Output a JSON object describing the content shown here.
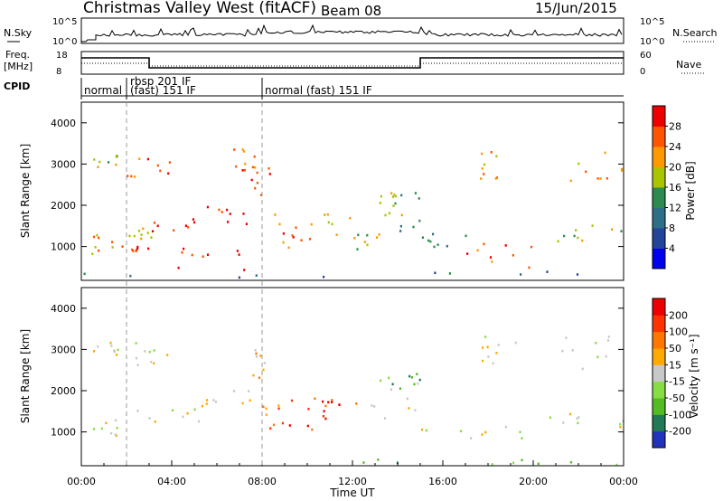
{
  "header": {
    "title": "Christmas Valley West (fitACF)",
    "beam": "Beam 08",
    "date": "15/Jun/2015"
  },
  "panels": {
    "nsky_label": "N.Sky",
    "nsky_ticks": [
      "10^5",
      "10^0"
    ],
    "nsearch_label": "N.Search",
    "nsearch_ticks": [
      "10^5",
      "10^0"
    ],
    "freq_label_1": "Freq.",
    "freq_label_2": "[MHz]",
    "freq_ticks": [
      "18",
      "8"
    ],
    "nave_label": "Nave",
    "nave_ticks": [
      "60",
      "0"
    ],
    "cpid_label": "CPID",
    "cpid_segments": [
      "normal",
      "rbsp 201 IF",
      "(fast) 151 IF",
      "normal (fast) 151 IF"
    ]
  },
  "colors": {
    "power": [
      "#0000ee",
      "#22449a",
      "#2e6e86",
      "#2f8a50",
      "#aac400",
      "#ff9900",
      "#ff5500",
      "#ee0000"
    ],
    "velocity": [
      "#2233bb",
      "#1f7a55",
      "#55bb22",
      "#88dd44",
      "#c8c8c8",
      "#ffaa00",
      "#ff7700",
      "#ff3300",
      "#ee0000"
    ]
  },
  "chart_data": [
    {
      "type": "heatmap",
      "name": "power",
      "ylabel": "Slant Range [km]",
      "ylim": [
        180,
        4500
      ],
      "yticks": [
        "4000",
        "3000",
        "2000",
        "1000"
      ],
      "xlim": [
        "00:00",
        "24:00"
      ],
      "colorbar_label": "Power [dB]",
      "colorbar_ticks": [
        "28",
        "24",
        "20",
        "16",
        "12",
        "8",
        "4"
      ],
      "regions": [
        {
          "t0": 0.4,
          "t1": 1.6,
          "r0": 800,
          "r1": 1300,
          "level": 5
        },
        {
          "t0": 0.4,
          "t1": 1.6,
          "r0": 2850,
          "r1": 3200,
          "level": 4
        },
        {
          "t0": 1.6,
          "t1": 3.0,
          "r0": 850,
          "r1": 1100,
          "level": 7
        },
        {
          "t0": 1.8,
          "t1": 3.2,
          "r0": 1150,
          "r1": 1450,
          "level": 4
        },
        {
          "t0": 3.0,
          "t1": 5.5,
          "r0": 1350,
          "r1": 1650,
          "level": 7
        },
        {
          "t0": 5.5,
          "t1": 7.5,
          "r0": 1400,
          "r1": 2000,
          "level": 7
        },
        {
          "t0": 2.0,
          "t1": 4.0,
          "r0": 2600,
          "r1": 3300,
          "level": 6
        },
        {
          "t0": 3.0,
          "t1": 7.5,
          "r0": 400,
          "r1": 1000,
          "level": 7
        },
        {
          "t0": 5.5,
          "t1": 7.8,
          "r0": 2800,
          "r1": 3400,
          "level": 6
        },
        {
          "t0": 7.5,
          "t1": 9.0,
          "r0": 2200,
          "r1": 3000,
          "level": 6
        },
        {
          "t0": 8.5,
          "t1": 9.5,
          "r0": 900,
          "r1": 1800,
          "level": 6
        },
        {
          "t0": 9.5,
          "t1": 12.5,
          "r0": 1100,
          "r1": 1900,
          "level": 5
        },
        {
          "t0": 12.0,
          "t1": 13.5,
          "r0": 900,
          "r1": 1300,
          "level": 4
        },
        {
          "t0": 12.3,
          "t1": 15.0,
          "r0": 1300,
          "r1": 2300,
          "level": 3
        },
        {
          "t0": 13.0,
          "t1": 15.0,
          "r0": 1700,
          "r1": 2500,
          "level": 4
        },
        {
          "t0": 15.0,
          "t1": 17.0,
          "r0": 900,
          "r1": 1300,
          "level": 3
        },
        {
          "t0": 17.0,
          "t1": 20.0,
          "r0": 450,
          "r1": 1100,
          "level": 6
        },
        {
          "t0": 20.0,
          "t1": 24.0,
          "r0": 1100,
          "r1": 1500,
          "level": 4
        },
        {
          "t0": 17.5,
          "t1": 19.5,
          "r0": 2600,
          "r1": 3300,
          "level": 5
        },
        {
          "t0": 21.0,
          "t1": 24.0,
          "r0": 2500,
          "r1": 3300,
          "level": 5
        },
        {
          "t0": 0.0,
          "t1": 24.0,
          "r0": 180,
          "r1": 380,
          "level": 2
        }
      ]
    },
    {
      "type": "heatmap",
      "name": "velocity",
      "ylabel": "Slant Range [km]",
      "ylim": [
        180,
        4500
      ],
      "yticks": [
        "4000",
        "3000",
        "2000",
        "1000"
      ],
      "xlabel": "Time UT",
      "xticks": [
        "00:00",
        "04:00",
        "08:00",
        "12:00",
        "16:00",
        "20:00",
        "00:00"
      ],
      "colorbar_label": "Velocity [m s⁻¹]",
      "colorbar_ticks": [
        "200",
        "100",
        "50",
        "15",
        "-15",
        "-50",
        "-100",
        "-200"
      ],
      "regions": [
        {
          "t0": 0.4,
          "t1": 1.6,
          "r0": 800,
          "r1": 1300,
          "level": 4
        },
        {
          "t0": 0.4,
          "t1": 1.6,
          "r0": 2850,
          "r1": 3200,
          "level": 4
        },
        {
          "t0": 1.6,
          "t1": 5.5,
          "r0": 1200,
          "r1": 1650,
          "level": 4
        },
        {
          "t0": 5.5,
          "t1": 7.5,
          "r0": 1400,
          "r1": 2000,
          "level": 4
        },
        {
          "t0": 2.0,
          "t1": 4.0,
          "r0": 2600,
          "r1": 3300,
          "level": 4
        },
        {
          "t0": 7.5,
          "t1": 8.5,
          "r0": 2200,
          "r1": 3000,
          "level": 5
        },
        {
          "t0": 8.0,
          "t1": 9.0,
          "r0": 900,
          "r1": 1800,
          "level": 6
        },
        {
          "t0": 9.0,
          "t1": 12.5,
          "r0": 1000,
          "r1": 1900,
          "level": 7
        },
        {
          "t0": 10.0,
          "t1": 11.5,
          "r0": 1300,
          "r1": 1800,
          "level": 8
        },
        {
          "t0": 12.3,
          "t1": 15.0,
          "r0": 1300,
          "r1": 2300,
          "level": 4
        },
        {
          "t0": 13.0,
          "t1": 15.0,
          "r0": 1900,
          "r1": 2500,
          "level": 2
        },
        {
          "t0": 15.0,
          "t1": 20.0,
          "r0": 800,
          "r1": 1300,
          "level": 4
        },
        {
          "t0": 20.0,
          "t1": 24.0,
          "r0": 1100,
          "r1": 1500,
          "level": 4
        },
        {
          "t0": 17.5,
          "t1": 19.5,
          "r0": 2600,
          "r1": 3300,
          "level": 4
        },
        {
          "t0": 21.0,
          "t1": 24.0,
          "r0": 2500,
          "r1": 3300,
          "level": 4
        },
        {
          "t0": 12.0,
          "t1": 24.0,
          "r0": 180,
          "r1": 320,
          "level": 2
        }
      ]
    }
  ]
}
